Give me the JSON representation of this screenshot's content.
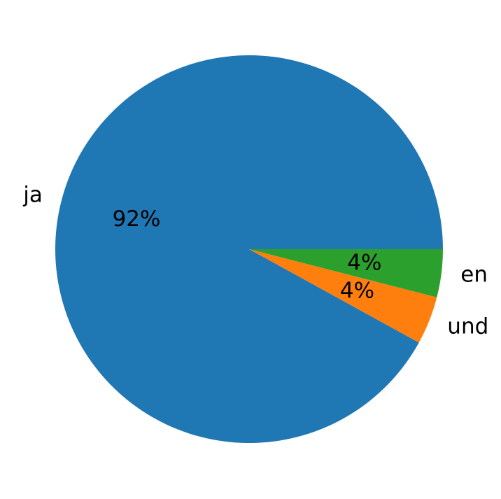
{
  "chart_data": {
    "type": "pie",
    "categories": [
      "ja",
      "und",
      "en"
    ],
    "values": [
      92,
      4,
      4
    ],
    "value_labels": [
      "92%",
      "4%",
      "4%"
    ],
    "colors": [
      "#1f77b4",
      "#ff7f0e",
      "#2ca02c"
    ]
  }
}
